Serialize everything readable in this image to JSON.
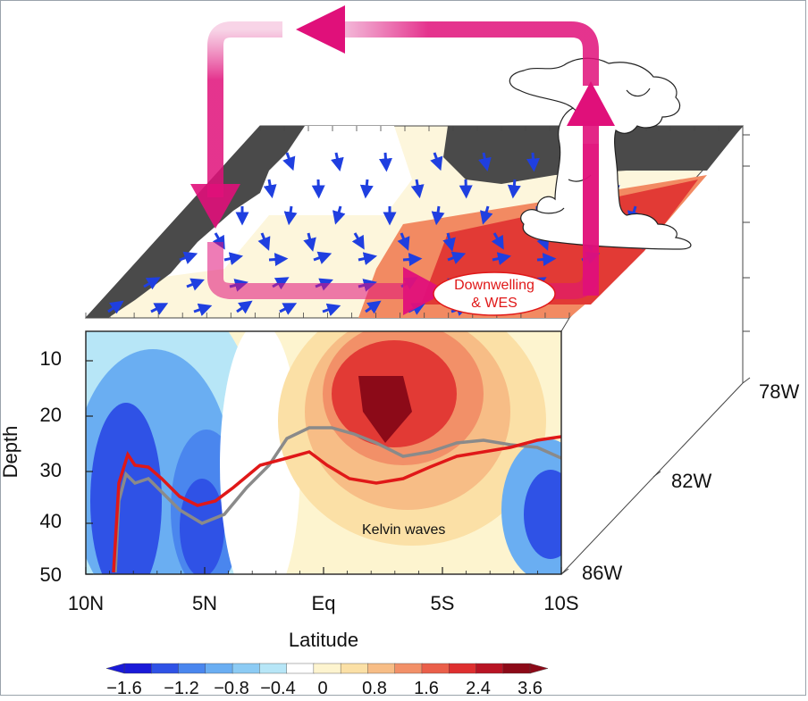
{
  "section": {
    "ylabel": "Depth",
    "xlabel": "Latitude",
    "y_ticks": [
      "10",
      "20",
      "30",
      "40",
      "50"
    ],
    "x_ticks": [
      "10N",
      "5N",
      "Eq",
      "5S",
      "10S"
    ],
    "lon_ticks": [
      "78W",
      "82W",
      "86W"
    ]
  },
  "annotations": {
    "bubble_line1": "Downwelling",
    "bubble_line2": "& WES",
    "kelvin": "Kelvin waves"
  },
  "colorbar": {
    "labels": [
      "−1.6",
      "−1.2",
      "−0.8",
      "−0.4",
      "0",
      "0.8",
      "1.6",
      "2.4",
      "3.6"
    ],
    "colors": [
      "#1a1ad8",
      "#2f52e6",
      "#4a86ee",
      "#6aaef2",
      "#8ccbf4",
      "#b7e6f7",
      "#ffffff",
      "#fdf4cf",
      "#fbe0a6",
      "#f7bd86",
      "#f29068",
      "#ea5f4a",
      "#de2f2f",
      "#b81424",
      "#8c0a18"
    ]
  },
  "colors": {
    "arrow": "#e0107a",
    "warm": "#e23a35",
    "cold": "#2e55e6",
    "land": "#4a4a4a",
    "wind": "#1f3fe0",
    "red_line": "#e01818",
    "grey_line": "#8a8a8a"
  }
}
